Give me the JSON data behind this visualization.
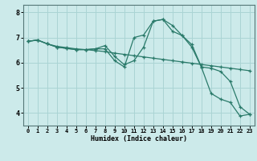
{
  "xlabel": "Humidex (Indice chaleur)",
  "bg_color": "#cceaea",
  "line_color": "#2a7a6a",
  "grid_color": "#aad4d4",
  "xlim": [
    -0.5,
    23.5
  ],
  "ylim": [
    3.5,
    8.3
  ],
  "xticks": [
    0,
    1,
    2,
    3,
    4,
    5,
    6,
    7,
    8,
    9,
    10,
    11,
    12,
    13,
    14,
    15,
    16,
    17,
    18,
    19,
    20,
    21,
    22,
    23
  ],
  "yticks": [
    4,
    5,
    6,
    7,
    8
  ],
  "line1_x": [
    0,
    1,
    2,
    3,
    4,
    5,
    6,
    7,
    8,
    9,
    10,
    11,
    12,
    13,
    14,
    15,
    16,
    17,
    18,
    19,
    20,
    21,
    22,
    23
  ],
  "line1_y": [
    6.85,
    6.9,
    6.75,
    6.65,
    6.6,
    6.55,
    6.52,
    6.48,
    6.44,
    6.38,
    6.33,
    6.28,
    6.23,
    6.18,
    6.13,
    6.08,
    6.03,
    5.98,
    5.93,
    5.88,
    5.83,
    5.78,
    5.73,
    5.68
  ],
  "line2_x": [
    0,
    1,
    2,
    3,
    4,
    5,
    6,
    7,
    8,
    9,
    10,
    11,
    12,
    13,
    14,
    15,
    16,
    17,
    18,
    19,
    20,
    21,
    22,
    23
  ],
  "line2_y": [
    6.85,
    6.9,
    6.75,
    6.62,
    6.57,
    6.52,
    6.52,
    6.55,
    6.55,
    6.08,
    5.83,
    7.0,
    7.1,
    7.65,
    7.72,
    7.48,
    7.08,
    6.72,
    5.83,
    5.78,
    5.65,
    5.25,
    4.25,
    3.95
  ],
  "line3_x": [
    0,
    1,
    2,
    3,
    4,
    5,
    6,
    7,
    8,
    9,
    10,
    11,
    12,
    13,
    14,
    15,
    16,
    17,
    18,
    19,
    20,
    21,
    22,
    23
  ],
  "line3_y": [
    6.85,
    6.9,
    6.75,
    6.62,
    6.57,
    6.52,
    6.52,
    6.55,
    6.68,
    6.25,
    5.92,
    6.08,
    6.62,
    7.65,
    7.72,
    7.25,
    7.08,
    6.62,
    5.82,
    4.78,
    4.55,
    4.42,
    3.88,
    3.95
  ]
}
